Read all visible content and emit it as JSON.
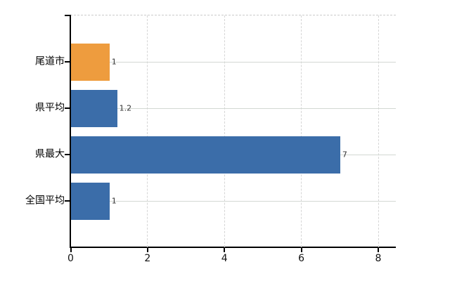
{
  "chart_data": {
    "type": "bar",
    "orientation": "horizontal",
    "title": "",
    "xlabel": "",
    "ylabel": "",
    "categories": [
      "尾道市",
      "県平均",
      "県最大",
      "全国平均"
    ],
    "values": [
      1,
      1.2,
      7,
      1
    ],
    "value_labels": [
      "1",
      "1.2",
      "7",
      "1"
    ],
    "bar_colors": [
      "#ee9c3e",
      "#3b6da9",
      "#3b6da9",
      "#3b6da9"
    ],
    "x_ticks": [
      0,
      2,
      4,
      6,
      8
    ],
    "x_tick_labels": [
      "0",
      "2",
      "4",
      "6",
      "8"
    ],
    "xlim": [
      0,
      8.45
    ],
    "grid": true,
    "grid_vertical_style": "dashed",
    "grid_horizontal_style": "solid",
    "legend": false
  },
  "colors": {
    "background": "#ffffff",
    "axis": "#000000",
    "gridline": "#d5d5d5",
    "top_border": "#cbcbcb",
    "category_label": "#000000",
    "tick_label": "#111111",
    "value_label": "#333333",
    "bar_orange": "#ee9c3e",
    "bar_blue": "#3b6da9"
  }
}
